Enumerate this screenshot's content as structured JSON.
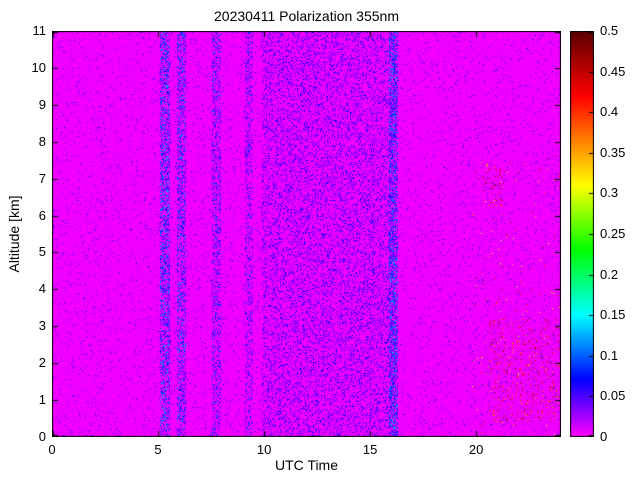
{
  "chart_data": {
    "type": "heatmap",
    "title": "20230411 Polarization 355nm",
    "xlabel": "UTC Time",
    "ylabel": "Altitude [km]",
    "xlim": [
      0,
      24
    ],
    "ylim": [
      0,
      11
    ],
    "xticks": [
      0,
      5,
      10,
      15,
      20
    ],
    "yticks": [
      0,
      1,
      2,
      3,
      4,
      5,
      6,
      7,
      8,
      9,
      10,
      11
    ],
    "grid": false,
    "colorbar": {
      "min": 0,
      "max": 0.5,
      "tick_labels": [
        "0",
        "0.05",
        "0.1",
        "0.15",
        "0.2",
        "0.25",
        "0.3",
        "0.35",
        "0.4",
        "0.45",
        "0.5"
      ],
      "colormap_stops": [
        {
          "at": 0.0,
          "color": "#ff00ff"
        },
        {
          "at": 0.14,
          "color": "#0000ff"
        },
        {
          "at": 0.3,
          "color": "#00ffff"
        },
        {
          "at": 0.46,
          "color": "#00ff00"
        },
        {
          "at": 0.62,
          "color": "#ffff00"
        },
        {
          "at": 0.72,
          "color": "#ff8c00"
        },
        {
          "at": 0.84,
          "color": "#ff0000"
        },
        {
          "at": 1.0,
          "color": "#5a0000"
        }
      ]
    },
    "field": {
      "description": "Uniform low depolarization (~0, magenta) everywhere; vertical noise stripes near 5.3, 6.1, 7.7 and 9.3 UTC; broad speckled noisy band from about 10 to 16 UTC at all altitudes; sparse high-depolarization red/dark-red speckles after 20 UTC below 3.2 km and near 6.2-7.4 km around 20.3-21.3 UTC.",
      "background_value": 0,
      "background_jitter": 0.008,
      "base_noise": {
        "probability": 0.045,
        "value_range": [
          0.008,
          0.06
        ]
      },
      "noise_regions": [
        {
          "t": [
            5.1,
            5.55
          ],
          "alt": [
            0,
            11
          ],
          "probability": 0.45,
          "value_range": [
            0.01,
            0.13
          ]
        },
        {
          "t": [
            5.9,
            6.3
          ],
          "alt": [
            0,
            11
          ],
          "probability": 0.4,
          "value_range": [
            0.01,
            0.12
          ]
        },
        {
          "t": [
            7.55,
            7.95
          ],
          "alt": [
            0,
            11
          ],
          "probability": 0.3,
          "value_range": [
            0.01,
            0.11
          ]
        },
        {
          "t": [
            9.1,
            9.5
          ],
          "alt": [
            0,
            11
          ],
          "probability": 0.25,
          "value_range": [
            0.01,
            0.1
          ]
        },
        {
          "t": [
            9.9,
            16.2
          ],
          "alt": [
            0,
            11
          ],
          "probability": 0.28,
          "value_range": [
            0.003,
            0.075
          ]
        },
        {
          "t": [
            15.9,
            16.3
          ],
          "alt": [
            0,
            11
          ],
          "probability": 0.5,
          "value_range": [
            0.01,
            0.13
          ]
        },
        {
          "t": [
            20.6,
            23.9
          ],
          "alt": [
            0.4,
            3.2
          ],
          "probability": 0.055,
          "value_range": [
            0.36,
            0.5
          ]
        },
        {
          "t": [
            20.3,
            21.3
          ],
          "alt": [
            6.2,
            7.4
          ],
          "probability": 0.05,
          "value_range": [
            0.36,
            0.5
          ]
        },
        {
          "t": [
            19.8,
            24
          ],
          "alt": [
            0,
            7.6
          ],
          "probability": 0.008,
          "value_range": [
            0.3,
            0.5
          ]
        }
      ],
      "noise_seed": 20230411
    }
  }
}
